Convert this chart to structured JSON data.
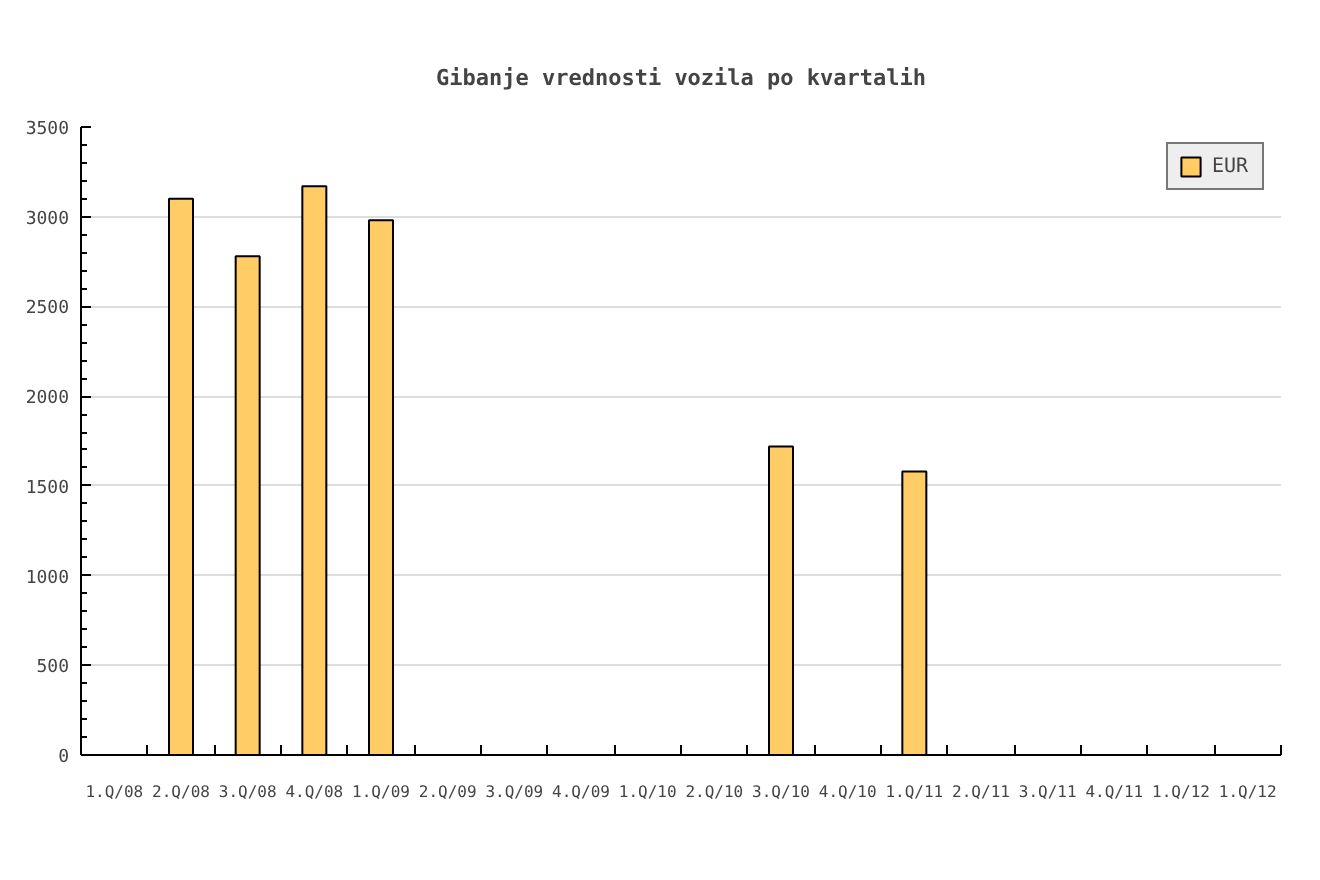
{
  "chart_data": {
    "type": "bar",
    "title": "Gibanje vrednosti vozila po kvartalih",
    "categories": [
      "1.Q/08",
      "2.Q/08",
      "3.Q/08",
      "4.Q/08",
      "1.Q/09",
      "2.Q/09",
      "3.Q/09",
      "4.Q/09",
      "1.Q/10",
      "2.Q/10",
      "3.Q/10",
      "4.Q/10",
      "1.Q/11",
      "2.Q/11",
      "3.Q/11",
      "4.Q/11",
      "1.Q/12",
      "1.Q/12"
    ],
    "series": [
      {
        "name": "EUR",
        "color": "#ffcc66",
        "values": [
          null,
          3100,
          2780,
          3170,
          2980,
          null,
          null,
          null,
          null,
          null,
          1720,
          null,
          1580,
          null,
          null,
          null,
          null,
          null
        ]
      }
    ],
    "ylim": [
      0,
      3500
    ],
    "yticks": [
      0,
      500,
      1000,
      1500,
      2000,
      2500,
      3000,
      3500
    ],
    "grid": "y",
    "legend": "top right"
  }
}
